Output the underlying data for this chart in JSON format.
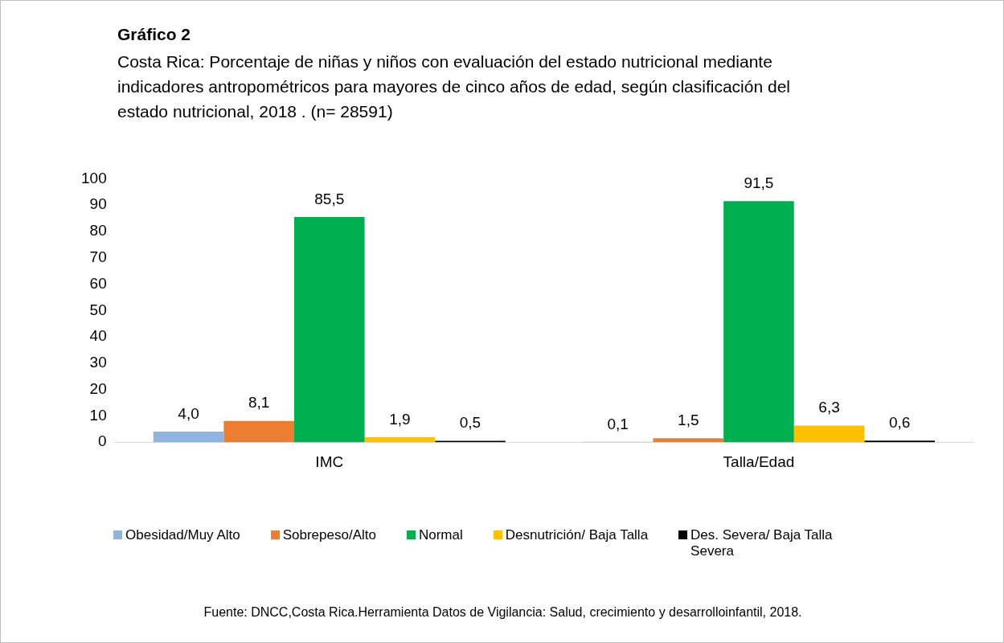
{
  "chart_data": {
    "type": "bar",
    "title": "Gráfico 2",
    "subtitle": "Costa Rica: Porcentaje de niñas y niños con evaluación del estado nutricional mediante indicadores antropométricos para mayores de cinco años de edad,  según clasificación del estado nutricional, 2018 . (n= 28591)",
    "categories": [
      "IMC",
      "Talla/Edad"
    ],
    "series": [
      {
        "name": "Obesidad/Muy Alto",
        "color": "#8db4e2",
        "values": [
          4.0,
          0.1
        ],
        "value_labels": [
          "4,0",
          "0,1"
        ]
      },
      {
        "name": "Sobrepeso/Alto",
        "color": "#ed7d31",
        "values": [
          8.1,
          1.5
        ],
        "value_labels": [
          "8,1",
          "1,5"
        ]
      },
      {
        "name": "Normal",
        "color": "#00b050",
        "values": [
          85.5,
          91.5
        ],
        "value_labels": [
          "85,5",
          "91,5"
        ]
      },
      {
        "name": "Desnutrición/ Baja Talla",
        "color": "#ffc000",
        "values": [
          1.9,
          6.3
        ],
        "value_labels": [
          "1,9",
          "6,3"
        ]
      },
      {
        "name": "Des. Severa/ Baja Talla Severa",
        "color": "#000000",
        "values": [
          0.5,
          0.6
        ],
        "value_labels": [
          "0,5",
          "0,6"
        ]
      }
    ],
    "ylim": [
      0,
      100
    ],
    "yticks": [
      0,
      10,
      20,
      30,
      40,
      50,
      60,
      70,
      80,
      90,
      100
    ],
    "grid": false,
    "legend": "bottom",
    "annotations": [
      "Fuente: DNCC,Costa Rica.Herramienta Datos de Vigilancia: Salud, crecimiento y desarrolloinfantil, 2018."
    ]
  }
}
